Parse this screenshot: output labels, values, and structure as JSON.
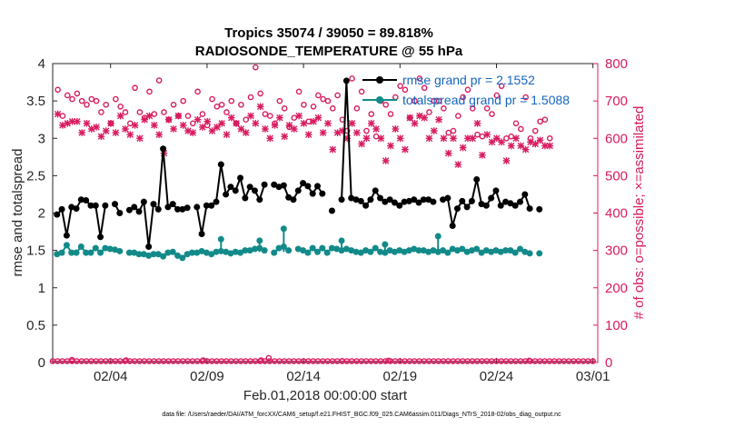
{
  "chart_data": {
    "type": "line",
    "title": "Tropics 35074 / 39050 = 89.818%",
    "subtitle": "RADIOSONDE_TEMPERATURE @ 55 hPa",
    "xlabel": "Feb.01,2018 00:00:00 start",
    "ylabel": "rmse and totalspread",
    "ylabel_right": "# of obs: o=possible; ×=assimilated",
    "footnote": "data file: /Users/raeder/DAI/ATM_forcXX/CAM6_setup/f.e21.FHIST_BGC.f09_025.CAM6assim.011/Diags_NTrS_2018-02/obs_diag_output.nc",
    "x_range_days": [
      0,
      28.25
    ],
    "x_ticks": [
      {
        "day": 3,
        "label": "02/04"
      },
      {
        "day": 8,
        "label": "02/09"
      },
      {
        "day": 13,
        "label": "02/14"
      },
      {
        "day": 18,
        "label": "02/19"
      },
      {
        "day": 23,
        "label": "02/24"
      },
      {
        "day": 28,
        "label": "03/01"
      }
    ],
    "ylim_left": [
      0,
      4
    ],
    "yticks_left": [
      "0",
      "0.5",
      "1",
      "1.5",
      "2",
      "2.5",
      "3",
      "3.5",
      "4"
    ],
    "ylim_right": [
      0,
      800
    ],
    "yticks_right": [
      "0",
      "100",
      "200",
      "300",
      "400",
      "500",
      "600",
      "700",
      "800"
    ],
    "legend": {
      "position": "top-right"
    },
    "series": [
      {
        "name": "rmse grand pr = 2.1552",
        "axis": "left",
        "color": "#000000",
        "values": [
          1.98,
          2.05,
          1.7,
          2.08,
          2.06,
          2.18,
          2.17,
          2.1,
          2.1,
          1.68,
          2.1,
          null,
          2.12,
          2.0,
          null,
          2.04,
          2.08,
          2.02,
          2.15,
          1.55,
          2.12,
          2.05,
          2.86,
          2.08,
          2.12,
          2.05,
          2.05,
          2.07,
          null,
          2.08,
          1.72,
          2.1,
          2.1,
          2.15,
          2.65,
          2.25,
          2.35,
          2.3,
          2.47,
          2.2,
          2.35,
          2.3,
          2.18,
          2.38,
          null,
          2.38,
          2.35,
          2.37,
          2.21,
          2.18,
          2.3,
          2.4,
          2.36,
          2.26,
          2.36,
          2.26,
          null,
          2.03,
          null,
          2.18,
          3.77,
          2.2,
          2.18,
          2.16,
          2.1,
          2.18,
          2.3,
          2.2,
          2.15,
          2.18,
          2.14,
          2.1,
          2.15,
          2.16,
          2.18,
          2.14,
          2.18,
          2.18,
          2.15,
          null,
          2.18,
          2.2,
          1.83,
          2.06,
          2.16,
          2.08,
          2.16,
          2.45,
          2.12,
          2.1,
          2.2,
          2.3,
          2.1,
          2.15,
          2.13,
          2.1,
          2.15,
          2.25,
          2.06,
          null,
          2.05
        ]
      },
      {
        "name": "totalspread grand pr = 1.5088",
        "axis": "left",
        "color": "#138a8a",
        "values": [
          1.45,
          1.47,
          1.57,
          1.47,
          1.47,
          1.55,
          1.47,
          1.47,
          1.53,
          1.47,
          1.53,
          1.52,
          1.51,
          1.49,
          null,
          1.47,
          1.47,
          1.45,
          1.45,
          1.43,
          1.45,
          1.45,
          1.42,
          1.47,
          1.48,
          1.43,
          1.4,
          1.45,
          1.47,
          1.47,
          1.49,
          1.47,
          1.45,
          1.48,
          1.49,
          1.48,
          1.46,
          1.48,
          1.47,
          1.5,
          1.5,
          1.52,
          1.53,
          1.5,
          null,
          1.47,
          1.53,
          1.55,
          1.5,
          null,
          1.52,
          1.5,
          1.47,
          1.53,
          1.48,
          1.53,
          1.47,
          1.53,
          1.52,
          1.5,
          1.52,
          1.5,
          1.48,
          1.47,
          1.5,
          1.48,
          1.53,
          1.48,
          1.47,
          1.5,
          1.48,
          1.5,
          1.48,
          1.5,
          1.52,
          1.5,
          1.5,
          1.48,
          1.5,
          1.48,
          1.5,
          1.47,
          1.52,
          1.5,
          1.52,
          1.48,
          1.5,
          1.52,
          1.47,
          1.5,
          1.48,
          1.5,
          1.48,
          1.5,
          1.5,
          1.47,
          1.52,
          1.48,
          1.46,
          null,
          1.46
        ],
        "highlights": [
          [
            34,
            1.65
          ],
          [
            42,
            1.63
          ],
          [
            47,
            1.79
          ],
          [
            59,
            1.63
          ],
          [
            68,
            1.58
          ],
          [
            79,
            1.69
          ]
        ]
      },
      {
        "name": "possible",
        "axis": "right",
        "marker": "o",
        "color": "#d81b60",
        "points": [
          [
            0,
            730
          ],
          [
            1,
            660
          ],
          [
            2,
            715
          ],
          [
            3,
            705
          ],
          [
            4,
            720
          ],
          [
            5,
            700
          ],
          [
            6,
            690
          ],
          [
            7,
            705
          ],
          [
            8,
            700
          ],
          [
            9,
            670
          ],
          [
            10,
            690
          ],
          [
            11,
            640
          ],
          [
            12,
            705
          ],
          [
            13,
            685
          ],
          [
            14,
            670
          ],
          [
            15,
            640
          ],
          [
            16,
            735
          ],
          [
            17,
            670
          ],
          [
            18,
            655
          ],
          [
            19,
            725
          ],
          [
            20,
            665
          ],
          [
            21,
            755
          ],
          [
            22,
            670
          ],
          [
            23,
            650
          ],
          [
            24,
            690
          ],
          [
            25,
            660
          ],
          [
            26,
            700
          ],
          [
            27,
            660
          ],
          [
            28,
            640
          ],
          [
            29,
            725
          ],
          [
            30,
            665
          ],
          [
            31,
            635
          ],
          [
            32,
            705
          ],
          [
            33,
            685
          ],
          [
            34,
            690
          ],
          [
            35,
            670
          ],
          [
            36,
            700
          ],
          [
            37,
            640
          ],
          [
            38,
            690
          ],
          [
            39,
            650
          ],
          [
            40,
            710
          ],
          [
            41,
            790
          ],
          [
            42,
            720
          ],
          [
            43,
            665
          ],
          [
            44,
            660
          ],
          [
            45,
            640
          ],
          [
            46,
            700
          ],
          [
            47,
            680
          ],
          [
            48,
            630
          ],
          [
            49,
            655
          ],
          [
            50,
            725
          ],
          [
            51,
            690
          ],
          [
            52,
            645
          ],
          [
            53,
            685
          ],
          [
            54,
            715
          ],
          [
            55,
            705
          ],
          [
            56,
            700
          ],
          [
            57,
            680
          ],
          [
            58,
            715
          ],
          [
            59,
            650
          ],
          [
            60,
            620
          ],
          [
            61,
            760
          ],
          [
            62,
            680
          ],
          [
            63,
            725
          ],
          [
            64,
            620
          ],
          [
            65,
            665
          ],
          [
            66,
            605
          ],
          [
            67,
            700
          ],
          [
            68,
            690
          ],
          [
            69,
            665
          ],
          [
            70,
            710
          ],
          [
            71,
            740
          ],
          [
            72,
            730
          ],
          [
            73,
            655
          ],
          [
            74,
            700
          ],
          [
            75,
            760
          ],
          [
            76,
            735
          ],
          [
            77,
            670
          ],
          [
            78,
            700
          ],
          [
            79,
            700
          ],
          [
            80,
            680
          ],
          [
            81,
            615
          ],
          [
            82,
            620
          ],
          [
            83,
            660
          ],
          [
            84,
            710
          ],
          [
            85,
            730
          ],
          [
            86,
            680
          ],
          [
            87,
            610
          ],
          [
            88,
            605
          ],
          [
            89,
            680
          ],
          [
            90,
            665
          ],
          [
            91,
            715
          ],
          [
            92,
            740
          ],
          [
            93,
            600
          ],
          [
            94,
            605
          ],
          [
            95,
            640
          ],
          [
            96,
            625
          ],
          [
            97,
            710
          ],
          [
            98,
            600
          ],
          [
            99,
            620
          ],
          [
            100,
            645
          ],
          [
            101,
            650
          ],
          [
            102,
            600
          ]
        ]
      },
      {
        "name": "assimilated",
        "axis": "right",
        "marker": "x",
        "color": "#d81b60",
        "points": [
          [
            0,
            665
          ],
          [
            1,
            635
          ],
          [
            2,
            640
          ],
          [
            3,
            645
          ],
          [
            4,
            645
          ],
          [
            5,
            615
          ],
          [
            6,
            640
          ],
          [
            7,
            625
          ],
          [
            8,
            630
          ],
          [
            9,
            605
          ],
          [
            10,
            620
          ],
          [
            11,
            640
          ],
          [
            12,
            615
          ],
          [
            13,
            660
          ],
          [
            14,
            625
          ],
          [
            15,
            610
          ],
          [
            16,
            635
          ],
          [
            17,
            600
          ],
          [
            18,
            650
          ],
          [
            19,
            660
          ],
          [
            20,
            635
          ],
          [
            21,
            610
          ],
          [
            22,
            560
          ],
          [
            23,
            650
          ],
          [
            24,
            625
          ],
          [
            25,
            660
          ],
          [
            26,
            635
          ],
          [
            27,
            620
          ],
          [
            28,
            615
          ],
          [
            29,
            650
          ],
          [
            30,
            630
          ],
          [
            31,
            645
          ],
          [
            32,
            620
          ],
          [
            33,
            630
          ],
          [
            34,
            640
          ],
          [
            35,
            610
          ],
          [
            36,
            655
          ],
          [
            37,
            640
          ],
          [
            38,
            625
          ],
          [
            39,
            615
          ],
          [
            40,
            660
          ],
          [
            41,
            640
          ],
          [
            42,
            685
          ],
          [
            43,
            625
          ],
          [
            44,
            600
          ],
          [
            45,
            635
          ],
          [
            46,
            655
          ],
          [
            47,
            605
          ],
          [
            48,
            635
          ],
          [
            49,
            625
          ],
          [
            50,
            660
          ],
          [
            51,
            640
          ],
          [
            52,
            610
          ],
          [
            53,
            645
          ],
          [
            54,
            655
          ],
          [
            55,
            615
          ],
          [
            56,
            640
          ],
          [
            57,
            570
          ],
          [
            58,
            615
          ],
          [
            59,
            620
          ],
          [
            60,
            600
          ],
          [
            61,
            640
          ],
          [
            62,
            615
          ],
          [
            63,
            585
          ],
          [
            64,
            600
          ],
          [
            65,
            640
          ],
          [
            66,
            625
          ],
          [
            67,
            600
          ],
          [
            68,
            540
          ],
          [
            69,
            580
          ],
          [
            70,
            625
          ],
          [
            71,
            600
          ],
          [
            72,
            570
          ],
          [
            73,
            655
          ],
          [
            74,
            640
          ],
          [
            75,
            660
          ],
          [
            76,
            655
          ],
          [
            77,
            600
          ],
          [
            78,
            620
          ],
          [
            79,
            650
          ],
          [
            80,
            600
          ],
          [
            81,
            560
          ],
          [
            82,
            600
          ],
          [
            83,
            530
          ],
          [
            84,
            575
          ],
          [
            85,
            600
          ],
          [
            86,
            600
          ],
          [
            87,
            640
          ],
          [
            88,
            555
          ],
          [
            89,
            610
          ],
          [
            90,
            590
          ],
          [
            91,
            600
          ],
          [
            92,
            590
          ],
          [
            93,
            540
          ],
          [
            94,
            580
          ],
          [
            95,
            600
          ],
          [
            96,
            580
          ],
          [
            97,
            570
          ],
          [
            98,
            590
          ],
          [
            99,
            585
          ],
          [
            100,
            595
          ],
          [
            101,
            580
          ],
          [
            102,
            580
          ]
        ]
      },
      {
        "name": "possible-low",
        "axis": "right",
        "marker": "o",
        "color": "#d81b60",
        "values_constant": 0
      }
    ]
  }
}
